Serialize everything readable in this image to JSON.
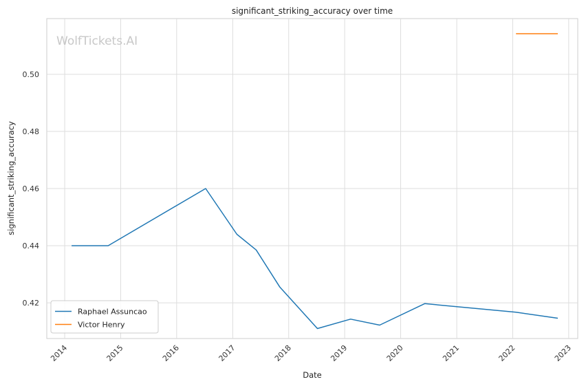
{
  "chart_data": {
    "type": "line",
    "title": "significant_striking_accuracy over time",
    "xlabel": "Date",
    "ylabel": "significant_striking_accuracy",
    "watermark": "WolfTickets.AI",
    "x_ticks": [
      "2014",
      "2015",
      "2016",
      "2017",
      "2018",
      "2019",
      "2020",
      "2021",
      "2022",
      "2023"
    ],
    "y_ticks": [
      "0.42",
      "0.44",
      "0.46",
      "0.48",
      "0.50"
    ],
    "xlim": [
      "2013-09-06",
      "2023-03-01"
    ],
    "ylim": [
      0.4075,
      0.5195
    ],
    "grid": true,
    "legend_position": "lower-left",
    "series": [
      {
        "name": "Raphael Assuncao",
        "color": "#1f77b4",
        "points": [
          [
            "2014-02-15",
            0.44
          ],
          [
            "2014-10-11",
            0.44
          ],
          [
            "2016-07-08",
            0.46
          ],
          [
            "2017-01-28",
            0.444
          ],
          [
            "2017-06-03",
            0.4385
          ],
          [
            "2017-11-04",
            0.4255
          ],
          [
            "2018-07-07",
            0.411
          ],
          [
            "2019-02-09",
            0.4143
          ],
          [
            "2019-08-17",
            0.4122
          ],
          [
            "2020-06-06",
            0.4197
          ],
          [
            "2022-01-22",
            0.4167
          ],
          [
            "2022-10-22",
            0.4146
          ]
        ]
      },
      {
        "name": "Victor Henry",
        "color": "#ff7f0e",
        "points": [
          [
            "2022-01-22",
            0.5142
          ],
          [
            "2022-10-22",
            0.5142
          ]
        ]
      }
    ]
  }
}
